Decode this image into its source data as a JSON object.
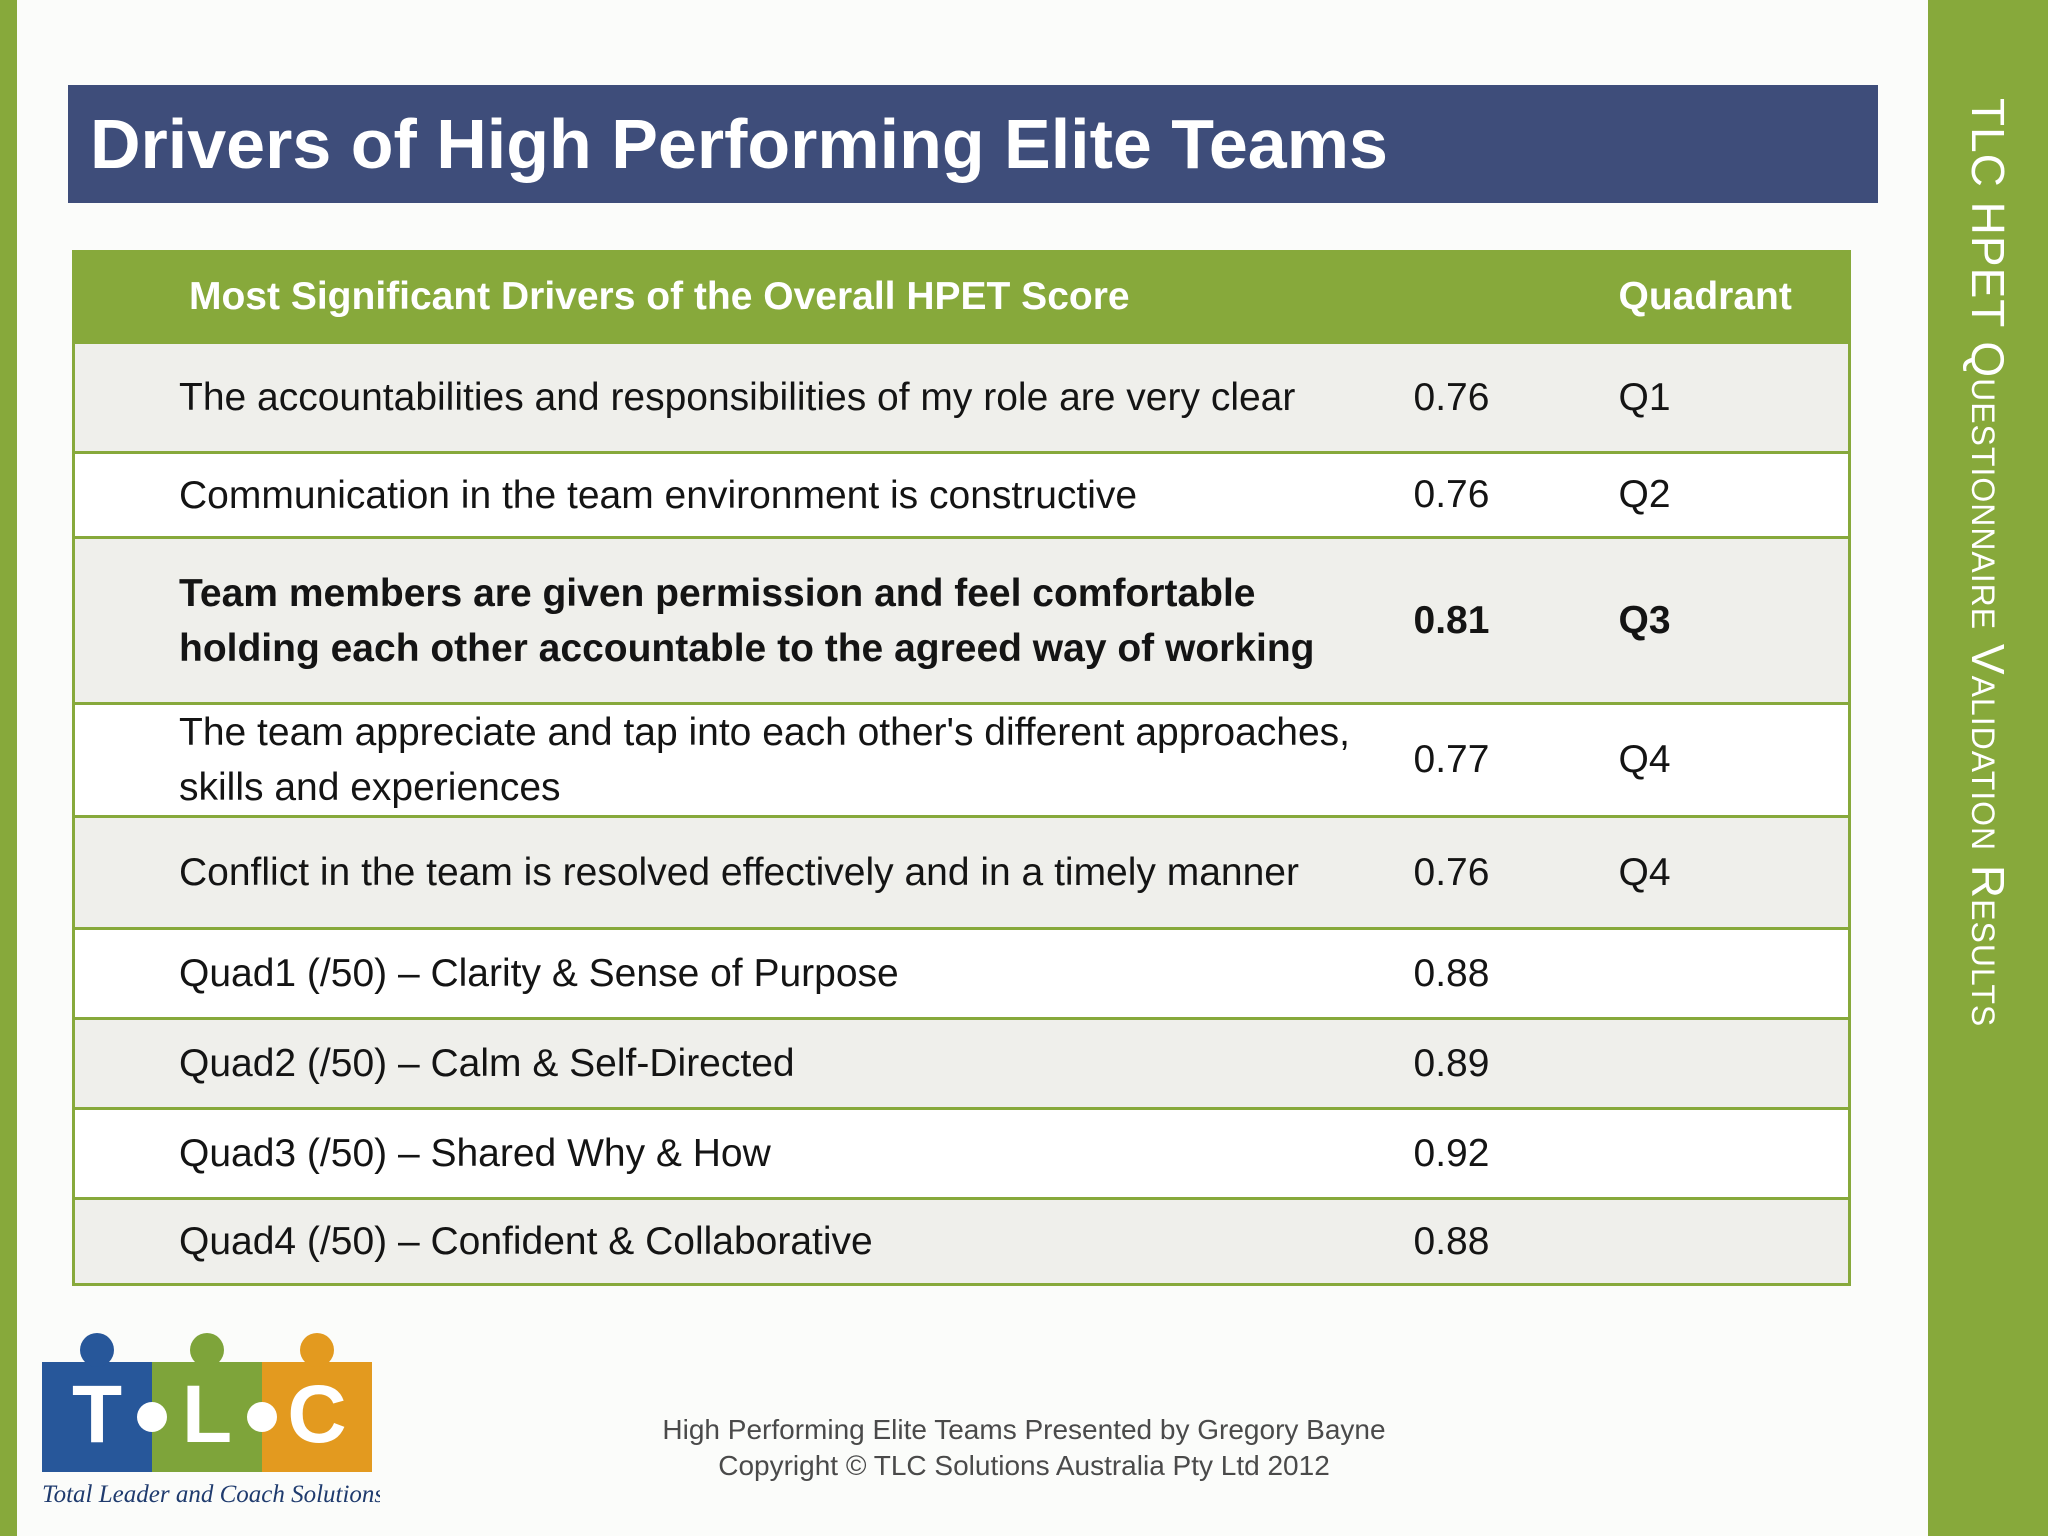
{
  "side_title": "TLC HPET Questionnaire Validation Results",
  "title": "Drivers of High Performing Elite Teams",
  "table": {
    "header_driver": "Most Significant Drivers of the Overall HPET Score",
    "header_score": "",
    "header_quadrant": "Quadrant",
    "rows": [
      {
        "driver": "The accountabilities and responsibilities of my role are very clear",
        "score": "0.76",
        "quadrant": "Q1"
      },
      {
        "driver": "Communication in the team environment is constructive",
        "score": "0.76",
        "quadrant": "Q2"
      },
      {
        "driver": "Team members are given permission and feel comfortable holding each other accountable to the agreed way of working",
        "score": "0.81",
        "quadrant": "Q3"
      },
      {
        "driver": "The team appreciate and tap into each other's different approaches, skills and experiences",
        "score": "0.77",
        "quadrant": "Q4"
      },
      {
        "driver": "Conflict in the team is resolved effectively and in a timely manner",
        "score": "0.76",
        "quadrant": "Q4"
      },
      {
        "driver": "Quad1 (/50) – Clarity & Sense of Purpose",
        "score": "0.88",
        "quadrant": ""
      },
      {
        "driver": "Quad2 (/50) – Calm & Self-Directed",
        "score": "0.89",
        "quadrant": ""
      },
      {
        "driver": "Quad3 (/50) – Shared Why & How",
        "score": "0.92",
        "quadrant": ""
      },
      {
        "driver": "Quad4 (/50) – Confident & Collaborative",
        "score": "0.88",
        "quadrant": ""
      }
    ]
  },
  "logo": {
    "letters": [
      "T",
      "L",
      "C"
    ],
    "tagline": "Total Leader and Coach Solutions",
    "colors": {
      "t": "#27579a",
      "l": "#7ea43a",
      "c": "#e39a1f"
    }
  },
  "footer": {
    "line1": "High Performing Elite Teams Presented by Gregory Bayne",
    "line2": "Copyright © TLC Solutions Australia Pty Ltd 2012"
  },
  "colors": {
    "accent_green": "#87a93b",
    "title_navy": "#3e4d7a",
    "row_shade": "#efefeb"
  }
}
